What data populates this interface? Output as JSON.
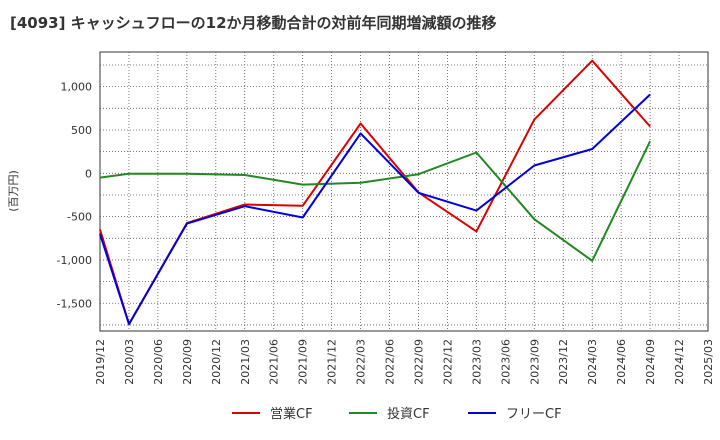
{
  "chart_data": {
    "type": "line",
    "title": "[4093]  キャッシュフローの12か月移動合計の対前年同期増減額の推移",
    "ylabel": "(百万円)",
    "xlabel": "",
    "ylim": [
      -1820,
      1400
    ],
    "yticks": [
      1000,
      500,
      0,
      -500,
      -1000,
      -1500
    ],
    "ytick_labels": [
      "1,000",
      "500",
      "0",
      "-500",
      "-1,000",
      "-1,500"
    ],
    "categories": [
      "2019/12",
      "2020/03",
      "2020/06",
      "2020/09",
      "2020/12",
      "2021/03",
      "2021/06",
      "2021/09",
      "2021/12",
      "2022/03",
      "2022/06",
      "2022/09",
      "2022/12",
      "2023/03",
      "2023/06",
      "2023/09",
      "2023/12",
      "2024/03",
      "2024/06",
      "2024/09",
      "2024/12",
      "2025/03"
    ],
    "grid": true,
    "legend_position": "bottom",
    "series": [
      {
        "name": "営業CF",
        "color": "#dd0000",
        "values": [
          -650,
          -1740,
          null,
          -575,
          null,
          -360,
          null,
          -375,
          null,
          575,
          null,
          -220,
          null,
          -670,
          null,
          620,
          null,
          1300,
          null,
          540,
          null,
          null
        ]
      },
      {
        "name": "投資CF",
        "color": "#228822",
        "values": [
          -50,
          -5,
          null,
          -5,
          null,
          -20,
          null,
          -130,
          null,
          -110,
          null,
          -10,
          null,
          240,
          null,
          -530,
          null,
          -1010,
          null,
          370,
          null,
          null
        ]
      },
      {
        "name": "フリーCF",
        "color": "#0000dd",
        "values": [
          -700,
          -1740,
          null,
          -580,
          null,
          -380,
          null,
          -510,
          null,
          460,
          null,
          -225,
          null,
          -430,
          null,
          90,
          null,
          280,
          null,
          910,
          null,
          null
        ]
      }
    ]
  }
}
